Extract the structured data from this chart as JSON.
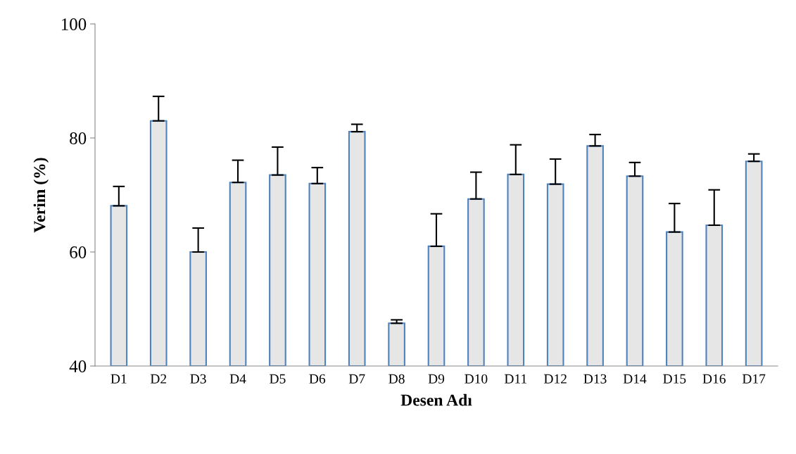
{
  "chart_data": {
    "type": "bar",
    "xlabel": "Desen Adı",
    "ylabel": "Verim (%)",
    "categories": [
      "D1",
      "D2",
      "D3",
      "D4",
      "D5",
      "D6",
      "D7",
      "D8",
      "D9",
      "D10",
      "D11",
      "D12",
      "D13",
      "D14",
      "D15",
      "D16",
      "D17"
    ],
    "values": [
      68.1,
      83.0,
      60.0,
      72.2,
      73.5,
      72.0,
      81.1,
      47.5,
      61.0,
      69.3,
      73.6,
      71.9,
      78.6,
      73.3,
      63.5,
      64.7,
      75.9
    ],
    "errors": [
      [
        68.1,
        71.5
      ],
      [
        83.0,
        87.3
      ],
      [
        60.0,
        64.2
      ],
      [
        72.2,
        76.1
      ],
      [
        73.5,
        78.4
      ],
      [
        72.0,
        74.8
      ],
      [
        81.1,
        82.4
      ],
      [
        47.5,
        48.1
      ],
      [
        61.0,
        66.7
      ],
      [
        69.3,
        74.0
      ],
      [
        73.6,
        78.8
      ],
      [
        71.9,
        76.3
      ],
      [
        78.6,
        80.6
      ],
      [
        73.3,
        75.7
      ],
      [
        63.5,
        68.5
      ],
      [
        64.7,
        70.9
      ],
      [
        75.9,
        77.2
      ]
    ],
    "color": "#e6e6e6",
    "ylim": [
      40,
      100
    ],
    "yticks": [
      40,
      60,
      80,
      100
    ],
    "grid": false
  }
}
